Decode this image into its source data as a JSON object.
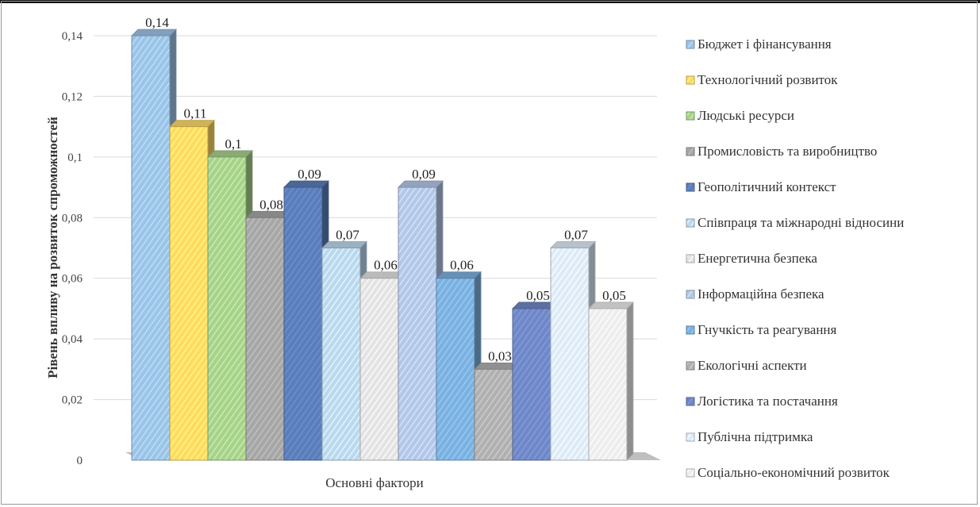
{
  "chart_data": {
    "type": "bar",
    "title": "",
    "xlabel": "Основні фактори",
    "ylabel": "Рівень впливу на розвиток спроможностей",
    "ylim": [
      0,
      0.14
    ],
    "yticks": [
      "0",
      "0,02",
      "0,04",
      "0,06",
      "0,08",
      "0,1",
      "0,12",
      "0,14"
    ],
    "grid": true,
    "legend_position": "right",
    "categories": [
      "Основні фактори"
    ],
    "series": [
      {
        "name": "Бюджет і фінансування",
        "value": 0.14,
        "label": "0,14",
        "color": "#9DC3E6"
      },
      {
        "name": "Технологічний розвиток",
        "value": 0.11,
        "label": "0,11",
        "color": "#FFD966"
      },
      {
        "name": "Людські ресурси",
        "value": 0.1,
        "label": "0,1",
        "color": "#A9D18E"
      },
      {
        "name": "Промисловість та виробництво",
        "value": 0.08,
        "label": "0,08",
        "color": "#A6A6A6"
      },
      {
        "name": "Геополітичний контекст",
        "value": 0.09,
        "label": "0,09",
        "color": "#5B7DB8"
      },
      {
        "name": "Співпраця та міжнародні відносини",
        "value": 0.07,
        "label": "0,07",
        "color": "#BDD7EE"
      },
      {
        "name": "Енергетична безпека",
        "value": 0.06,
        "label": "0,06",
        "color": "#E3E3E3"
      },
      {
        "name": "Інформаційна безпека",
        "value": 0.09,
        "label": "0,09",
        "color": "#B4C7E7"
      },
      {
        "name": "Гнучкість та реагування",
        "value": 0.06,
        "label": "0,06",
        "color": "#7DB0DE"
      },
      {
        "name": "Екологічні аспекти",
        "value": 0.03,
        "label": "0,03",
        "color": "#B0B0B0"
      },
      {
        "name": "Логістика та постачання",
        "value": 0.05,
        "label": "0,05",
        "color": "#6F87C4"
      },
      {
        "name": "Публічна підтримка",
        "value": 0.07,
        "label": "0,07",
        "color": "#DDEBF7"
      },
      {
        "name": "Соціально-економічний розвиток",
        "value": 0.05,
        "label": "0,05",
        "color": "#EDEDED"
      }
    ]
  }
}
